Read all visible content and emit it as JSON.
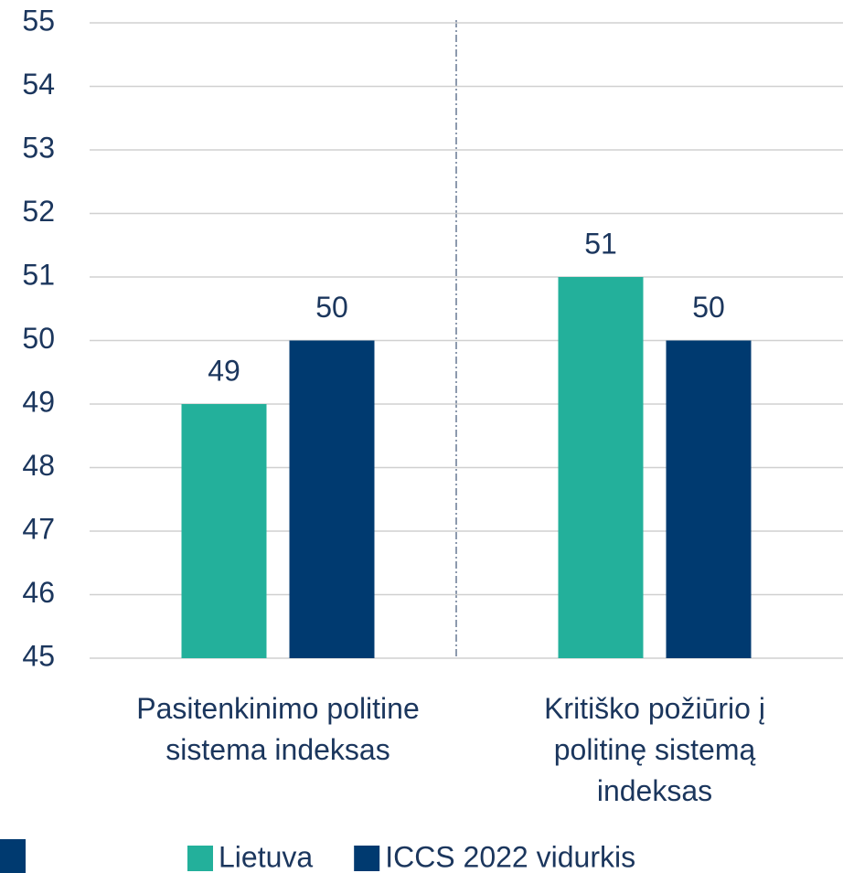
{
  "chart_data": {
    "type": "bar",
    "categories": [
      "Pasitenkinimo politine sistema indeksas",
      "Kritiško požiūrio į politinę sistemą indeksas"
    ],
    "series": [
      {
        "name": "Lietuva",
        "color": "#23b09b",
        "values": [
          49,
          51
        ]
      },
      {
        "name": "ICCS 2022 vidurkis",
        "color": "#003a70",
        "values": [
          50,
          50
        ]
      }
    ],
    "ylim": [
      45,
      55
    ],
    "yticks": [
      45,
      46,
      47,
      48,
      49,
      50,
      51,
      52,
      53,
      54,
      55
    ],
    "grid": true,
    "legend": "bottom"
  }
}
